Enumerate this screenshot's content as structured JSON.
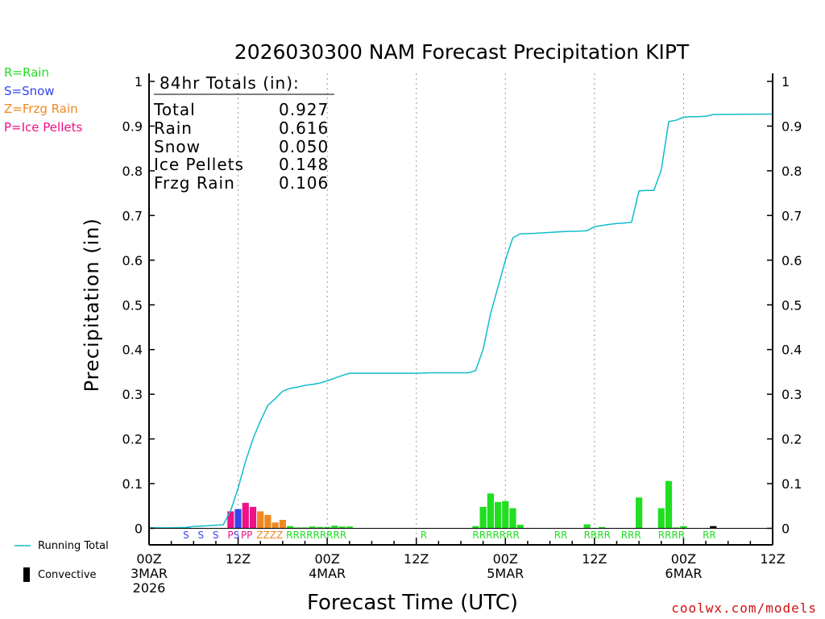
{
  "title": "2026030300 NAM Forecast Precipitation KIPT",
  "credit": "coolwx.com/models",
  "precip_types": [
    {
      "label": "R=Rain",
      "color": "#22dd22"
    },
    {
      "label": "S=Snow",
      "color": "#3344ee"
    },
    {
      "label": "Z=Frzg Rain",
      "color": "#ee8822"
    },
    {
      "label": "P=Ice Pellets",
      "color": "#ee1188"
    }
  ],
  "series_legend": {
    "running_total": "Running Total",
    "convective": "Convective"
  },
  "line_color": "#11bbcc",
  "totals": {
    "heading": "84hr Totals (in):",
    "rows": [
      {
        "label": "Total",
        "value": "0.927"
      },
      {
        "label": "Rain",
        "value": "0.616"
      },
      {
        "label": "Snow",
        "value": "0.050"
      },
      {
        "label": "Ice Pellets",
        "value": "0.148"
      },
      {
        "label": "Frzg Rain",
        "value": "0.106"
      }
    ]
  },
  "chart_data": {
    "type": "bar",
    "title": "2026030300 NAM Forecast Precipitation KIPT",
    "xlabel": "Forecast Time (UTC)",
    "ylabel": "Precipitation (in)",
    "xlim": [
      0,
      84
    ],
    "ylim": [
      0,
      1
    ],
    "y_ticks": [
      0,
      0.1,
      0.2,
      0.3,
      0.4,
      0.5,
      0.6,
      0.7,
      0.8,
      0.9,
      1
    ],
    "y_tick_labels": [
      "0",
      "0.1",
      "0.2",
      "0.3",
      "0.4",
      "0.5",
      "0.6",
      "0.7",
      "0.8",
      "0.9",
      "1"
    ],
    "x_ticks": [
      {
        "hour": 0,
        "lines": [
          "00Z",
          "3MAR",
          "2026"
        ]
      },
      {
        "hour": 12,
        "lines": [
          "12Z"
        ]
      },
      {
        "hour": 24,
        "lines": [
          "00Z",
          "4MAR"
        ]
      },
      {
        "hour": 36,
        "lines": [
          "12Z"
        ]
      },
      {
        "hour": 48,
        "lines": [
          "00Z",
          "5MAR"
        ]
      },
      {
        "hour": 60,
        "lines": [
          "12Z"
        ]
      },
      {
        "hour": 72,
        "lines": [
          "00Z",
          "6MAR"
        ]
      },
      {
        "hour": 84,
        "lines": [
          "12Z"
        ]
      }
    ],
    "hourly_precip": [
      {
        "hour": 5,
        "value": 0.002,
        "type": "S"
      },
      {
        "hour": 7,
        "value": 0.001,
        "type": "S"
      },
      {
        "hour": 9,
        "value": 0.001,
        "type": "S"
      },
      {
        "hour": 11,
        "value": 0.038,
        "type": "P"
      },
      {
        "hour": 12,
        "value": 0.043,
        "type": "S"
      },
      {
        "hour": 13,
        "value": 0.057,
        "type": "P"
      },
      {
        "hour": 14,
        "value": 0.048,
        "type": "P"
      },
      {
        "hour": 15,
        "value": 0.038,
        "type": "Z"
      },
      {
        "hour": 16,
        "value": 0.03,
        "type": "Z"
      },
      {
        "hour": 17,
        "value": 0.013,
        "type": "Z"
      },
      {
        "hour": 18,
        "value": 0.019,
        "type": "Z"
      },
      {
        "hour": 19,
        "value": 0.005,
        "type": "R"
      },
      {
        "hour": 20,
        "value": 0.002,
        "type": "R"
      },
      {
        "hour": 21,
        "value": 0.002,
        "type": "R"
      },
      {
        "hour": 22,
        "value": 0.004,
        "type": "R"
      },
      {
        "hour": 23,
        "value": 0.003,
        "type": "R"
      },
      {
        "hour": 24,
        "value": 0.003,
        "type": "R"
      },
      {
        "hour": 25,
        "value": 0.006,
        "type": "R"
      },
      {
        "hour": 26,
        "value": 0.004,
        "type": "R"
      },
      {
        "hour": 27,
        "value": 0.004,
        "type": "R"
      },
      {
        "hour": 37,
        "value": 0.001,
        "type": "R"
      },
      {
        "hour": 44,
        "value": 0.005,
        "type": "R"
      },
      {
        "hour": 45,
        "value": 0.048,
        "type": "R"
      },
      {
        "hour": 46,
        "value": 0.078,
        "type": "R"
      },
      {
        "hour": 47,
        "value": 0.059,
        "type": "R"
      },
      {
        "hour": 48,
        "value": 0.061,
        "type": "R"
      },
      {
        "hour": 49,
        "value": 0.045,
        "type": "R"
      },
      {
        "hour": 50,
        "value": 0.008,
        "type": "R"
      },
      {
        "hour": 51,
        "value": 0.001,
        "type": "R"
      },
      {
        "hour": 55,
        "value": 0.001,
        "type": "R"
      },
      {
        "hour": 56,
        "value": 0.001,
        "type": "R"
      },
      {
        "hour": 59,
        "value": 0.009,
        "type": "R"
      },
      {
        "hour": 60,
        "value": 0.001,
        "type": "R"
      },
      {
        "hour": 61,
        "value": 0.003,
        "type": "R"
      },
      {
        "hour": 62,
        "value": 0.001,
        "type": "R"
      },
      {
        "hour": 64,
        "value": 0.001,
        "type": "R"
      },
      {
        "hour": 65,
        "value": 0.001,
        "type": "R"
      },
      {
        "hour": 66,
        "value": 0.069,
        "type": "R"
      },
      {
        "hour": 69,
        "value": 0.045,
        "type": "R"
      },
      {
        "hour": 70,
        "value": 0.106,
        "type": "R"
      },
      {
        "hour": 71,
        "value": 0.002,
        "type": "R"
      },
      {
        "hour": 72,
        "value": 0.005,
        "type": "R"
      },
      {
        "hour": 75,
        "value": 0.001,
        "type": "R"
      },
      {
        "hour": 76,
        "value": 0.005,
        "type": "R",
        "convective": true
      }
    ],
    "type_labels": [
      {
        "hour": 5,
        "text": "S",
        "type": "S"
      },
      {
        "hour": 7,
        "text": "S",
        "type": "S"
      },
      {
        "hour": 9,
        "text": "S",
        "type": "S"
      },
      {
        "hour": 11,
        "text": "PS",
        "types": [
          "P",
          "S"
        ]
      },
      {
        "hour": 12.8,
        "text": "PP",
        "type": "P"
      },
      {
        "hour": 14.9,
        "text": "ZZZZ",
        "type": "Z"
      },
      {
        "hour": 18.9,
        "text": "RRRRRRRRR",
        "type": "R"
      },
      {
        "hour": 37,
        "text": "R",
        "type": "R"
      },
      {
        "hour": 44,
        "text": "RRRRRRR",
        "type": "R"
      },
      {
        "hour": 55,
        "text": "RR",
        "type": "R"
      },
      {
        "hour": 59,
        "text": "RRRR",
        "type": "R"
      },
      {
        "hour": 64,
        "text": "RRR",
        "type": "R"
      },
      {
        "hour": 69,
        "text": "RRRR",
        "type": "R"
      },
      {
        "hour": 75,
        "text": "RR",
        "type": "R"
      }
    ],
    "running_total": {
      "name": "Running Total",
      "x": [
        0,
        3,
        5,
        6,
        7,
        8,
        9,
        10,
        11,
        12,
        13,
        14,
        15,
        16,
        17,
        18,
        19,
        20,
        21,
        22,
        23,
        24,
        25,
        26,
        27,
        28,
        30,
        32,
        34,
        36,
        38,
        40,
        42,
        43,
        44,
        45,
        46,
        47,
        48,
        49,
        50,
        52,
        54,
        56,
        58,
        59,
        60,
        62,
        63,
        64,
        65,
        66,
        67,
        68,
        69,
        70,
        71,
        72,
        73,
        74,
        75,
        76,
        84
      ],
      "y": [
        0.001,
        0.001,
        0.002,
        0.004,
        0.005,
        0.006,
        0.007,
        0.008,
        0.04,
        0.09,
        0.15,
        0.2,
        0.24,
        0.275,
        0.29,
        0.307,
        0.313,
        0.316,
        0.32,
        0.322,
        0.325,
        0.33,
        0.336,
        0.342,
        0.347,
        0.347,
        0.347,
        0.347,
        0.347,
        0.347,
        0.348,
        0.348,
        0.348,
        0.348,
        0.353,
        0.4,
        0.48,
        0.54,
        0.6,
        0.65,
        0.659,
        0.66,
        0.662,
        0.664,
        0.665,
        0.666,
        0.675,
        0.68,
        0.682,
        0.683,
        0.685,
        0.755,
        0.756,
        0.756,
        0.802,
        0.91,
        0.913,
        0.92,
        0.921,
        0.921,
        0.922,
        0.926,
        0.927
      ]
    }
  }
}
